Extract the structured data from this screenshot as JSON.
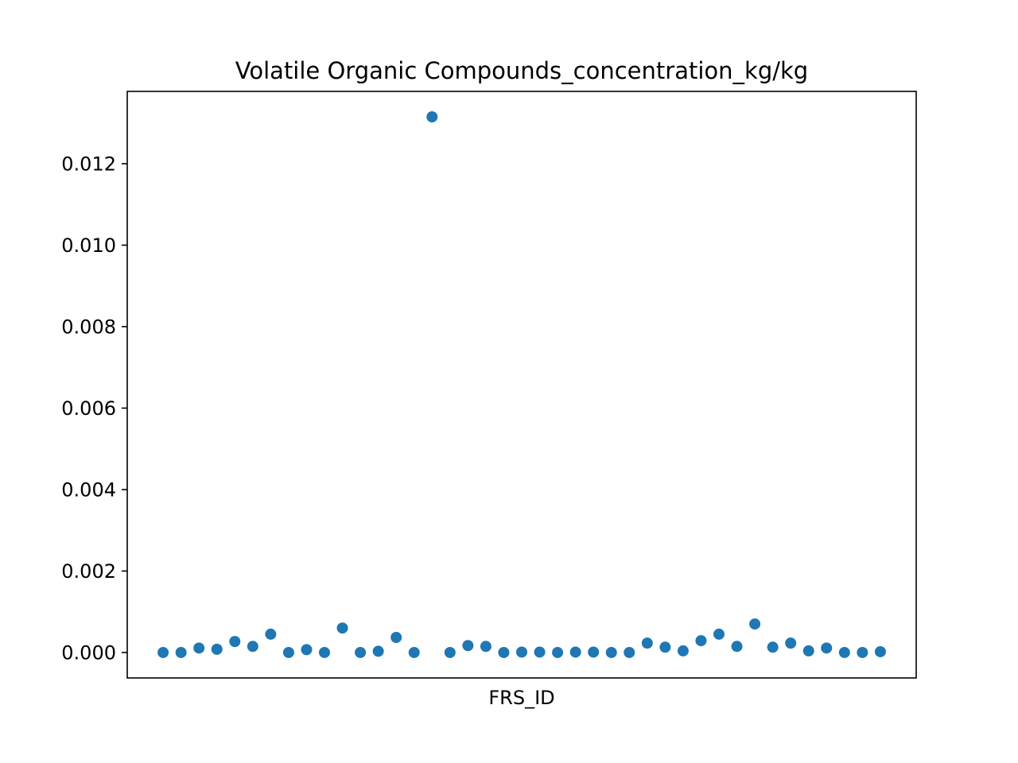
{
  "chart_data": {
    "type": "scatter",
    "title": "Volatile Organic Compounds_concentration_kg/kg",
    "xlabel": "FRS_ID",
    "ylabel": "",
    "ylim": [
      -0.000625,
      0.013775
    ],
    "grid": false,
    "legend": "none",
    "point_color": "#1f77b4",
    "yticks": [
      {
        "value": 0.0,
        "label": "0.000"
      },
      {
        "value": 0.002,
        "label": "0.002"
      },
      {
        "value": 0.004,
        "label": "0.004"
      },
      {
        "value": 0.006,
        "label": "0.006"
      },
      {
        "value": 0.008,
        "label": "0.008"
      },
      {
        "value": 0.01,
        "label": "0.010"
      },
      {
        "value": 0.012,
        "label": "0.012"
      }
    ],
    "x": [
      0,
      1,
      2,
      3,
      4,
      5,
      6,
      7,
      8,
      9,
      10,
      11,
      12,
      13,
      14,
      15,
      16,
      17,
      18,
      19,
      20,
      21,
      22,
      23,
      24,
      25,
      26,
      27,
      28,
      29,
      30,
      31,
      32,
      33,
      34,
      35,
      36,
      37,
      38,
      39,
      40
    ],
    "xlim": [
      -2,
      42
    ],
    "series": [
      {
        "values": [
          0.0,
          0.0,
          0.00011,
          8e-05,
          0.00027,
          0.00015,
          0.00045,
          0.0,
          7e-05,
          0.0,
          0.0006,
          0.0,
          3e-05,
          0.00037,
          0.0,
          0.01315,
          0.0,
          0.00017,
          0.00015,
          0.0,
          1e-05,
          1e-05,
          0.0,
          1e-05,
          1e-05,
          0.0,
          0.0,
          0.00023,
          0.00013,
          4e-05,
          0.00029,
          0.00045,
          0.00015,
          0.0007,
          0.00013,
          0.00023,
          4e-05,
          0.00011,
          0.0,
          0.0,
          2e-05
        ]
      }
    ]
  }
}
